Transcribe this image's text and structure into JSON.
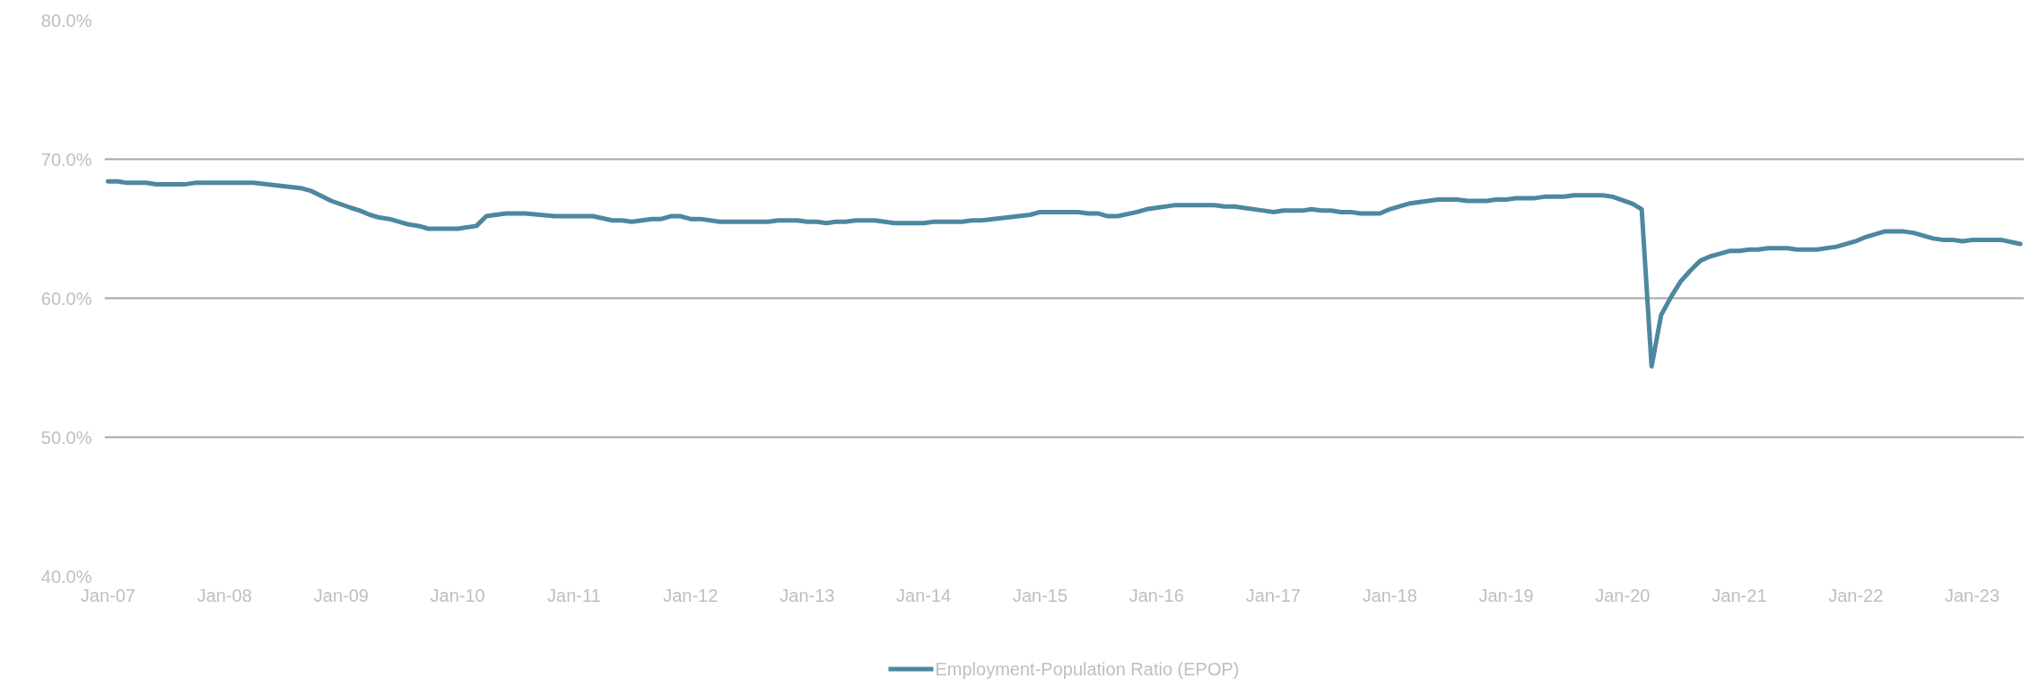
{
  "chart_data": {
    "type": "line",
    "xlim": [
      "2006-12-21",
      "2023-06-13"
    ],
    "ylim": [
      40,
      80
    ],
    "yticks": [
      {
        "value": 40,
        "label": "40.0%"
      },
      {
        "value": 50,
        "label": "50.0%"
      },
      {
        "value": 60,
        "label": "60.0%"
      },
      {
        "value": 70,
        "label": "70.0%"
      },
      {
        "value": 80,
        "label": "80.0%"
      }
    ],
    "xticks": [
      {
        "value": "2007-01",
        "label": "Jan-07"
      },
      {
        "value": "2008-01",
        "label": "Jan-08"
      },
      {
        "value": "2009-01",
        "label": "Jan-09"
      },
      {
        "value": "2010-01",
        "label": "Jan-10"
      },
      {
        "value": "2011-01",
        "label": "Jan-11"
      },
      {
        "value": "2012-01",
        "label": "Jan-12"
      },
      {
        "value": "2013-01",
        "label": "Jan-13"
      },
      {
        "value": "2014-01",
        "label": "Jan-14"
      },
      {
        "value": "2015-01",
        "label": "Jan-15"
      },
      {
        "value": "2016-01",
        "label": "Jan-16"
      },
      {
        "value": "2017-01",
        "label": "Jan-17"
      },
      {
        "value": "2018-01",
        "label": "Jan-18"
      },
      {
        "value": "2019-01",
        "label": "Jan-19"
      },
      {
        "value": "2020-01",
        "label": "Jan-20"
      },
      {
        "value": "2021-01",
        "label": "Jan-21"
      },
      {
        "value": "2022-01",
        "label": "Jan-22"
      },
      {
        "value": "2023-01",
        "label": "Jan-23"
      }
    ],
    "grid": "y",
    "legend": "bottom",
    "marker": "none",
    "line_style": "solid",
    "x": [
      "2007-01",
      "2007-02",
      "2007-03",
      "2007-05",
      "2007-06",
      "2007-09",
      "2007-10",
      "2008-04",
      "2008-09",
      "2008-10",
      "2008-12",
      "2009-02",
      "2009-03",
      "2009-04",
      "2009-05",
      "2009-06",
      "2009-08",
      "2009-09",
      "2009-10",
      "2010-01",
      "2010-03",
      "2010-04",
      "2010-06",
      "2010-08",
      "2010-11",
      "2011-03",
      "2011-05",
      "2011-06",
      "2011-07",
      "2011-09",
      "2011-10",
      "2011-11",
      "2011-12",
      "2012-01",
      "2012-02",
      "2012-04",
      "2012-09",
      "2012-10",
      "2012-12",
      "2013-01",
      "2013-02",
      "2013-03",
      "2013-04",
      "2013-05",
      "2013-06",
      "2013-08",
      "2013-10",
      "2013-11",
      "2014-01",
      "2014-02",
      "2014-05",
      "2014-06",
      "2014-07",
      "2014-12",
      "2015-01",
      "2015-05",
      "2015-06",
      "2015-07",
      "2015-08",
      "2015-09",
      "2015-11",
      "2015-12",
      "2016-03",
      "2016-07",
      "2016-08",
      "2016-09",
      "2017-01",
      "2017-02",
      "2017-04",
      "2017-05",
      "2017-06",
      "2017-07",
      "2017-08",
      "2017-09",
      "2017-10",
      "2017-12",
      "2018-01",
      "2018-03",
      "2018-06",
      "2018-08",
      "2018-09",
      "2018-11",
      "2018-12",
      "2019-01",
      "2019-02",
      "2019-04",
      "2019-05",
      "2019-07",
      "2019-08",
      "2019-11",
      "2019-12",
      "2020-02",
      "2020-03",
      "2020-04",
      "2020-05",
      "2020-06",
      "2020-07",
      "2020-08",
      "2020-09",
      "2020-10",
      "2020-11",
      "2020-12",
      "2021-01",
      "2021-02",
      "2021-03",
      "2021-04",
      "2021-06",
      "2021-07",
      "2021-09",
      "2021-11",
      "2022-01",
      "2022-02",
      "2022-04",
      "2022-06",
      "2022-07",
      "2022-09",
      "2022-10",
      "2022-11",
      "2022-12",
      "2023-01",
      "2023-04",
      "2023-06"
    ],
    "series": [
      {
        "name": "Employment-Population Ratio (EPOP)",
        "color": "#4d87a0",
        "values": [
          68.4,
          68.4,
          68.3,
          68.3,
          68.2,
          68.2,
          68.3,
          68.3,
          67.9,
          67.7,
          67.0,
          66.5,
          66.3,
          66.0,
          65.8,
          65.7,
          65.3,
          65.2,
          65.0,
          65.0,
          65.2,
          65.9,
          66.1,
          66.1,
          65.9,
          65.9,
          65.6,
          65.6,
          65.5,
          65.7,
          65.7,
          65.9,
          65.9,
          65.7,
          65.7,
          65.5,
          65.5,
          65.6,
          65.6,
          65.5,
          65.5,
          65.4,
          65.5,
          65.5,
          65.6,
          65.6,
          65.4,
          65.4,
          65.4,
          65.5,
          65.5,
          65.6,
          65.6,
          66.0,
          66.2,
          66.2,
          66.1,
          66.1,
          65.9,
          65.9,
          66.2,
          66.4,
          66.7,
          66.7,
          66.6,
          66.6,
          66.2,
          66.3,
          66.3,
          66.4,
          66.3,
          66.3,
          66.2,
          66.2,
          66.1,
          66.1,
          66.4,
          66.8,
          67.1,
          67.1,
          67.0,
          67.0,
          67.1,
          67.1,
          67.2,
          67.2,
          67.3,
          67.3,
          67.4,
          67.4,
          67.3,
          66.8,
          66.4,
          55.1,
          58.8,
          60.1,
          61.2,
          62.0,
          62.7,
          63.0,
          63.2,
          63.4,
          63.4,
          63.5,
          63.5,
          63.6,
          63.6,
          63.5,
          63.5,
          63.7,
          64.1,
          64.4,
          64.8,
          64.8,
          64.7,
          64.3,
          64.2,
          64.2,
          64.1,
          64.2,
          64.2,
          63.9
        ]
      }
    ]
  }
}
